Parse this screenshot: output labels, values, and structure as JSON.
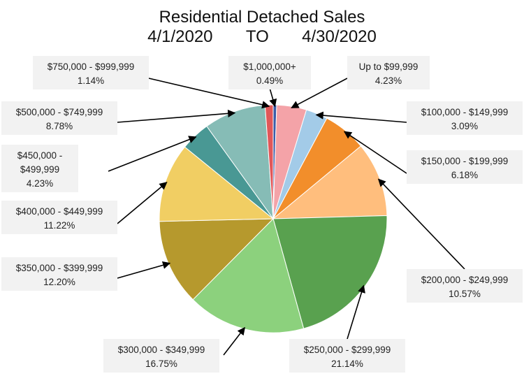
{
  "title_line1": "Residential Detached Sales",
  "title_from": "4/1/2020",
  "title_to_word": "TO",
  "title_to": "4/30/2020",
  "chart_data": {
    "type": "pie",
    "title": "Residential Detached Sales 4/1/2020 TO 4/30/2020",
    "slices": [
      {
        "label": "$1,000,000+",
        "value": 0.49,
        "pct_text": "0.49%",
        "color": "#3b5ca8"
      },
      {
        "label": "Up to $99,999",
        "value": 4.23,
        "pct_text": "4.23%",
        "color": "#f4a3a8"
      },
      {
        "label": "$100,000 - $149,999",
        "value": 3.09,
        "pct_text": "3.09%",
        "color": "#a3cbe8"
      },
      {
        "label": "$150,000 - $199,999",
        "value": 6.18,
        "pct_text": "6.18%",
        "color": "#f28e2b"
      },
      {
        "label": "$200,000 - $249,999",
        "value": 10.57,
        "pct_text": "10.57%",
        "color": "#ffbe7d"
      },
      {
        "label": "$250,000 - $299,999",
        "value": 21.14,
        "pct_text": "21.14%",
        "color": "#59a14f"
      },
      {
        "label": "$300,000 - $349,999",
        "value": 16.75,
        "pct_text": "16.75%",
        "color": "#8cd17d"
      },
      {
        "label": "$350,000 - $399,999",
        "value": 12.2,
        "pct_text": "12.20%",
        "color": "#b6992d"
      },
      {
        "label": "$400,000 - $449,999",
        "value": 11.22,
        "pct_text": "11.22%",
        "color": "#f1ce63"
      },
      {
        "label": "$450,000 - $499,999",
        "value": 4.23,
        "pct_text": "4.23%",
        "color": "#499894"
      },
      {
        "label": "$500,000 - $749,999",
        "value": 8.78,
        "pct_text": "8.78%",
        "color": "#86bcb6"
      },
      {
        "label": "$750,000 - $999,999",
        "value": 1.14,
        "pct_text": "1.14%",
        "color": "#e15759"
      }
    ]
  }
}
